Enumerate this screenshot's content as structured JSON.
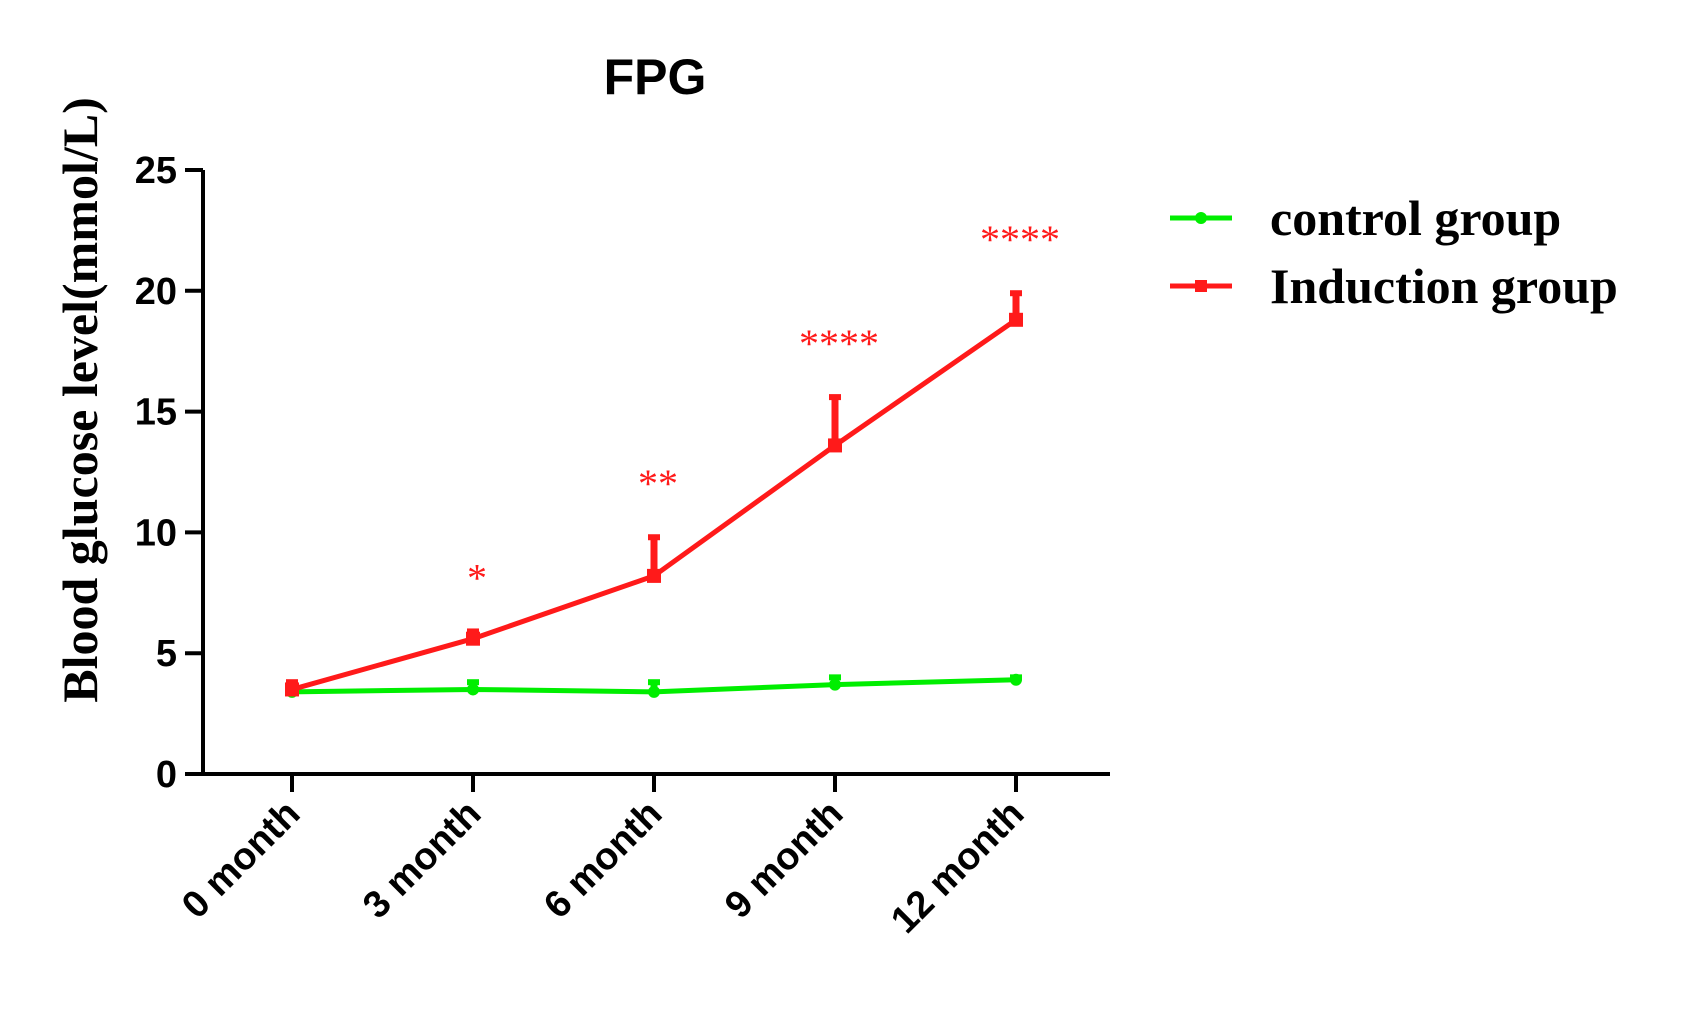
{
  "chart_data": {
    "type": "line",
    "title": "FPG",
    "xlabel": "",
    "ylabel": "Blood glucose level(mmol/L)",
    "categories": [
      "0 month",
      "3 month",
      "6 month",
      "9 month",
      "12 month"
    ],
    "ylim": [
      0,
      25
    ],
    "yticks": [
      "0",
      "5",
      "10",
      "15",
      "20",
      "25"
    ],
    "grid": false,
    "legend_position": "top-right",
    "series": [
      {
        "name": "control group",
        "color": "#00ee00",
        "marker": "circle",
        "values": [
          3.4,
          3.5,
          3.4,
          3.7,
          3.9
        ],
        "error": [
          0.2,
          0.3,
          0.4,
          0.3,
          0.1
        ]
      },
      {
        "name": "Induction group",
        "color": "#ff1a1a",
        "marker": "square",
        "values": [
          3.5,
          5.6,
          8.2,
          13.6,
          18.8
        ],
        "error": [
          0.3,
          0.3,
          1.6,
          2.0,
          1.1
        ]
      }
    ],
    "annotations": [
      "",
      "*",
      "**",
      "****",
      "****"
    ],
    "annotation_color": "#ff1a1a"
  }
}
